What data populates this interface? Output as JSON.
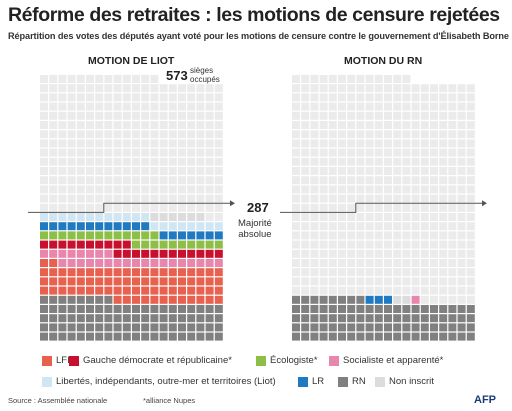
{
  "title": "Réforme des retraites : les motions de censure rejetées",
  "subtitle": "Répartition des votes des députés ayant voté pour les motions de censure contre le gouvernement d'Élisabeth Borne",
  "seats": {
    "number": "573",
    "label_line1": "sièges",
    "label_line2": "occupés"
  },
  "majority": {
    "number": "287",
    "label_line1": "Majorité",
    "label_line2": "absolue"
  },
  "colors": {
    "empty": "#ebebeb",
    "LFI": "#e8604e",
    "GDR": "#c8102e",
    "ECO": "#8dbf46",
    "SOC": "#e886ad",
    "LIOT": "#d0e7f3",
    "LR": "#1f7ac2",
    "RN": "#808080",
    "NI": "#dcdcdc"
  },
  "legend": [
    {
      "key": "LFI",
      "label": "LFI*"
    },
    {
      "key": "GDR",
      "label": "Gauche démocrate et républicaine*"
    },
    {
      "key": "ECO",
      "label": "Écologiste*"
    },
    {
      "key": "SOC",
      "label": "Socialiste et apparenté*"
    },
    {
      "key": "LIOT",
      "label": "Libertés, indépendants, outre-mer et territoires (Liot)"
    },
    {
      "key": "LR",
      "label": "LR"
    },
    {
      "key": "RN",
      "label": "RN"
    },
    {
      "key": "NI",
      "label": "Non inscrit"
    }
  ],
  "source": "Source : Assemblée nationale",
  "note": "*alliance Nupes",
  "logo": "AFP",
  "chart_data": [
    {
      "type": "waffle",
      "title": "MOTION DE LIOT",
      "total_seats": 573,
      "majority": 287,
      "total_votes": 278,
      "series": [
        {
          "name": "RN",
          "key": "RN",
          "value": 88
        },
        {
          "name": "LFI",
          "key": "LFI",
          "value": 74
        },
        {
          "name": "Socialiste et apparenté",
          "key": "SOC",
          "value": 26
        },
        {
          "name": "Gauche démocrate et républicaine",
          "key": "GDR",
          "value": 22
        },
        {
          "name": "Écologiste",
          "key": "ECO",
          "value": 23
        },
        {
          "name": "LR",
          "key": "LR",
          "value": 19
        },
        {
          "name": "Libertés, indépendants, outre-mer et territoires (Liot)",
          "key": "LIOT",
          "value": 20
        },
        {
          "name": "Non inscrit",
          "key": "NI",
          "value": 6
        }
      ]
    },
    {
      "type": "waffle",
      "title": "MOTION DU RN",
      "total_seats": 573,
      "majority": 287,
      "total_votes": 94,
      "series": [
        {
          "name": "RN",
          "key": "RN",
          "value": 88
        },
        {
          "name": "LR",
          "key": "LR",
          "value": 3
        },
        {
          "name": "Non inscrit",
          "key": "NI",
          "value": 2
        },
        {
          "name": "Socialiste et apparenté",
          "key": "SOC",
          "value": 1
        }
      ]
    }
  ]
}
